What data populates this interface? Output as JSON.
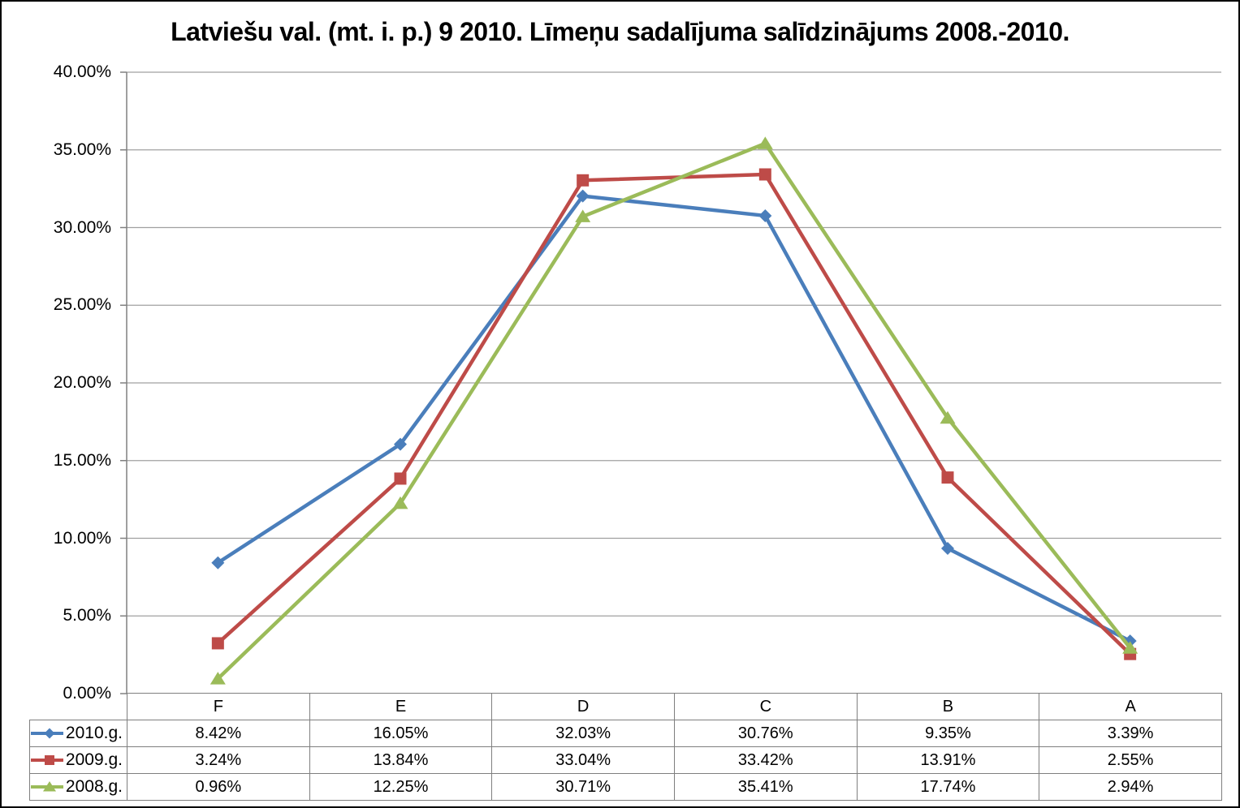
{
  "title": "Latviešu val. (mt. i. p.) 9 2010. Līmeņu sadalījuma salīdzinājums 2008.-2010.",
  "chart_data": {
    "type": "line",
    "categories": [
      "F",
      "E",
      "D",
      "C",
      "B",
      "A"
    ],
    "series": [
      {
        "name": "2010.g.",
        "marker": "diamond",
        "color": "#4A7EBB",
        "values": [
          8.42,
          16.05,
          32.03,
          30.76,
          9.35,
          3.39
        ],
        "display_values": [
          "8.42%",
          "16.05%",
          "32.03%",
          "30.76%",
          "9.35%",
          "3.39%"
        ]
      },
      {
        "name": "2009.g.",
        "marker": "square",
        "color": "#BE4B48",
        "values": [
          3.24,
          13.84,
          33.04,
          33.42,
          13.91,
          2.55
        ],
        "display_values": [
          "3.24%",
          "13.84%",
          "33.04%",
          "33.42%",
          "13.91%",
          "2.55%"
        ]
      },
      {
        "name": "2008.g.",
        "marker": "triangle",
        "color": "#9BBB59",
        "values": [
          0.96,
          12.25,
          30.71,
          35.41,
          17.74,
          2.94
        ],
        "display_values": [
          "0.96%",
          "12.25%",
          "30.71%",
          "35.41%",
          "17.74%",
          "2.94%"
        ]
      }
    ],
    "y_axis": {
      "min": 0,
      "max": 40,
      "step": 5,
      "tick_labels": [
        "0.00%",
        "5.00%",
        "10.00%",
        "15.00%",
        "20.00%",
        "25.00%",
        "30.00%",
        "35.00%",
        "40.00%"
      ]
    },
    "grid": true,
    "legend_position": "data-table-left",
    "ylabel": "",
    "xlabel": ""
  },
  "colors": {
    "gridline": "#A0A0A0",
    "axis": "#808080",
    "table_border": "#7F7F7F",
    "background": "#FFFFFF",
    "frame_border": "#000000",
    "text": "#000000"
  }
}
